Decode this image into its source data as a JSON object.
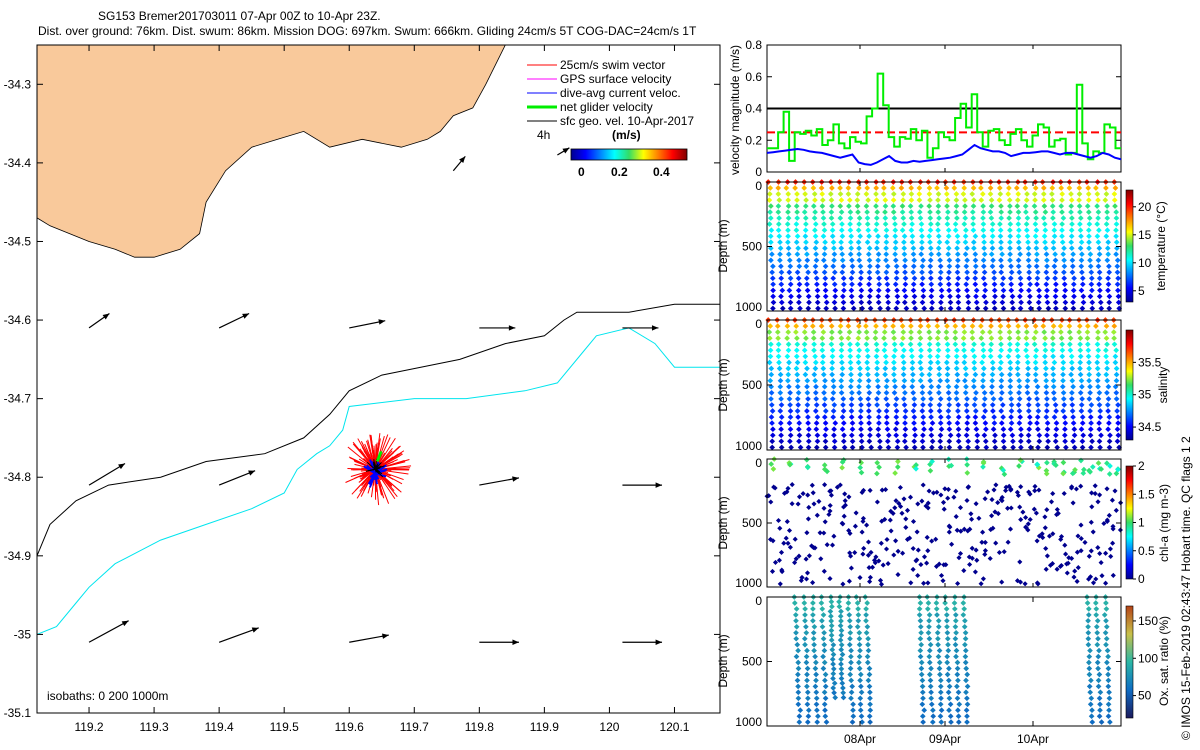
{
  "header": {
    "title_line1": "SG153 Bremer201703011 07-Apr 00Z to 10-Apr 23Z.",
    "title_line2": "Dist. over ground: 76km. Dist. swum: 86km. Mission DOG: 697km. Swum: 666km. Gliding 24cm/s 5T COG-DAC=24cm/s 1T"
  },
  "side_note": "© IMOS 15-Feb-2019 02:43:47 Hobart time. QC flags 1  2",
  "colors": {
    "land": "#f9c99b",
    "red": "#ff0000",
    "magenta": "#ff00ff",
    "blue": "#0000ff",
    "green": "#00ee00",
    "cyan": "#00e5ee",
    "black": "#000000"
  },
  "chart_data": [
    {
      "type": "map",
      "xlabel": "",
      "ylabel": "",
      "xlim": [
        119.12,
        120.17
      ],
      "ylim": [
        -35.1,
        -34.25
      ],
      "xticks": [
        119.2,
        119.3,
        119.4,
        119.5,
        119.6,
        119.7,
        119.8,
        119.9,
        120,
        120.1
      ],
      "xtick_labels": [
        "119.2",
        "119.3",
        "119.4",
        "119.5",
        "119.6",
        "119.7",
        "119.8",
        "119.9",
        "120",
        "120.1"
      ],
      "yticks": [
        -34.3,
        -34.4,
        -34.5,
        -34.6,
        -34.7,
        -34.8,
        -34.9,
        -35,
        -35.1
      ],
      "ytick_labels": [
        "-34.3",
        "-34.4",
        "-34.5",
        "-34.6",
        "-34.7",
        "-34.8",
        "-34.9",
        "-35",
        "-35.1"
      ],
      "legend": {
        "entries": [
          "25cm/s swim vector",
          "GPS surface velocity",
          "dive-avg current veloc.",
          "net glider velocity",
          "sfc geo. vel. 10-Apr-2017"
        ],
        "time_label": "4h",
        "unit_label": "(m/s)",
        "colorbar_ticks": [
          "0",
          "0.2",
          "0.4"
        ]
      },
      "isobaths_label": "isobaths: 0   200  1000m",
      "coastline": [
        [
          119.12,
          -34.25
        ],
        [
          119.84,
          -34.25
        ],
        [
          119.81,
          -34.3
        ],
        [
          119.79,
          -34.33
        ],
        [
          119.76,
          -34.34
        ],
        [
          119.74,
          -34.36
        ],
        [
          119.72,
          -34.37
        ],
        [
          119.68,
          -34.38
        ],
        [
          119.62,
          -34.37
        ],
        [
          119.57,
          -34.38
        ],
        [
          119.53,
          -34.36
        ],
        [
          119.49,
          -34.37
        ],
        [
          119.45,
          -34.38
        ],
        [
          119.41,
          -34.41
        ],
        [
          119.38,
          -34.45
        ],
        [
          119.37,
          -34.49
        ],
        [
          119.34,
          -34.51
        ],
        [
          119.3,
          -34.52
        ],
        [
          119.27,
          -34.52
        ],
        [
          119.24,
          -34.51
        ],
        [
          119.2,
          -34.5
        ],
        [
          119.17,
          -34.49
        ],
        [
          119.14,
          -34.48
        ],
        [
          119.12,
          -34.47
        ]
      ],
      "isobath_200": [
        [
          119.12,
          -34.9
        ],
        [
          119.14,
          -34.86
        ],
        [
          119.18,
          -34.83
        ],
        [
          119.23,
          -34.81
        ],
        [
          119.31,
          -34.8
        ],
        [
          119.38,
          -34.78
        ],
        [
          119.47,
          -34.77
        ],
        [
          119.53,
          -34.75
        ],
        [
          119.57,
          -34.72
        ],
        [
          119.6,
          -34.69
        ],
        [
          119.65,
          -34.67
        ],
        [
          119.71,
          -34.66
        ],
        [
          119.77,
          -34.65
        ],
        [
          119.84,
          -34.63
        ],
        [
          119.9,
          -34.62
        ],
        [
          119.93,
          -34.6
        ],
        [
          119.95,
          -34.59
        ],
        [
          120.03,
          -34.59
        ],
        [
          120.1,
          -34.58
        ],
        [
          120.17,
          -34.58
        ]
      ],
      "isobath_1000": [
        [
          119.12,
          -35.0
        ],
        [
          119.15,
          -34.99
        ],
        [
          119.18,
          -34.96
        ],
        [
          119.2,
          -34.94
        ],
        [
          119.24,
          -34.91
        ],
        [
          119.31,
          -34.88
        ],
        [
          119.38,
          -34.86
        ],
        [
          119.45,
          -34.84
        ],
        [
          119.5,
          -34.82
        ],
        [
          119.52,
          -34.79
        ],
        [
          119.55,
          -34.77
        ],
        [
          119.57,
          -34.76
        ],
        [
          119.59,
          -34.74
        ],
        [
          119.6,
          -34.71
        ],
        [
          119.7,
          -34.7
        ],
        [
          119.78,
          -34.7
        ],
        [
          119.87,
          -34.69
        ],
        [
          119.92,
          -34.68
        ],
        [
          119.96,
          -34.64
        ],
        [
          119.98,
          -34.62
        ],
        [
          120.03,
          -34.61
        ],
        [
          120.07,
          -34.63
        ],
        [
          120.1,
          -34.66
        ],
        [
          120.17,
          -34.66
        ]
      ],
      "current_vectors": [
        [
          119.2,
          -34.61,
          0.17,
          0.02
        ],
        [
          119.4,
          -34.61,
          0.25,
          0.02
        ],
        [
          119.6,
          -34.61,
          0.3,
          0.01
        ],
        [
          119.8,
          -34.61,
          0.3,
          0.0
        ],
        [
          120.02,
          -34.61,
          0.3,
          0.0
        ],
        [
          119.2,
          -34.81,
          0.3,
          0.03
        ],
        [
          119.4,
          -34.81,
          0.3,
          0.02
        ],
        [
          119.8,
          -34.81,
          0.33,
          0.01
        ],
        [
          120.02,
          -34.81,
          0.33,
          0.0
        ],
        [
          119.2,
          -35.01,
          0.33,
          0.03
        ],
        [
          119.4,
          -35.01,
          0.33,
          0.02
        ],
        [
          119.6,
          -35.01,
          0.33,
          0.01
        ],
        [
          119.8,
          -35.01,
          0.33,
          0.0
        ],
        [
          120.02,
          -35.01,
          0.33,
          0.0
        ],
        [
          119.92,
          -34.39,
          0.1,
          0.01
        ],
        [
          119.76,
          -34.41,
          0.1,
          0.02
        ]
      ],
      "glider_center": [
        119.64,
        -34.79
      ]
    },
    {
      "type": "line",
      "ylabel": "velocity magnitude (m/s)",
      "ylim": [
        0,
        0.8
      ],
      "yticks": [
        "0",
        "0.2",
        "0.4",
        "0.6",
        "0.8"
      ],
      "reference_lines": [
        {
          "name": "black",
          "value": 0.4
        },
        {
          "name": "red dashed",
          "value": 0.25
        }
      ],
      "series": [
        {
          "name": "net glider velocity",
          "values": [
            0.15,
            0.15,
            0.25,
            0.38,
            0.07,
            0.25,
            0.24,
            0.26,
            0.23,
            0.27,
            0.17,
            0.2,
            0.3,
            0.18,
            0.15,
            0.22,
            0.19,
            0.18,
            0.35,
            0.4,
            0.62,
            0.42,
            0.22,
            0.16,
            0.22,
            0.21,
            0.27,
            0.2,
            0.26,
            0.09,
            0.15,
            0.25,
            0.22,
            0.2,
            0.34,
            0.43,
            0.28,
            0.49,
            0.25,
            0.16,
            0.26,
            0.27,
            0.2,
            0.17,
            0.24,
            0.27,
            0.2,
            0.16,
            0.23,
            0.3,
            0.28,
            0.16,
            0.2,
            0.21,
            0.11,
            0.12,
            0.55,
            0.18,
            0.08,
            0.13,
            0.12,
            0.3,
            0.28,
            0.15,
            0.15
          ]
        },
        {
          "name": "dive-avg current",
          "values": [
            0.12,
            0.125,
            0.13,
            0.135,
            0.14,
            0.145,
            0.14,
            0.13,
            0.125,
            0.12,
            0.11,
            0.1,
            0.09,
            0.1,
            0.11,
            0.06,
            0.05,
            0.045,
            0.06,
            0.08,
            0.1,
            0.07,
            0.06,
            0.06,
            0.07,
            0.065,
            0.07,
            0.075,
            0.08,
            0.085,
            0.09,
            0.1,
            0.11,
            0.14,
            0.17,
            0.15,
            0.14,
            0.13,
            0.13,
            0.12,
            0.1,
            0.11,
            0.12,
            0.12,
            0.125,
            0.13,
            0.13,
            0.12,
            0.11,
            0.12,
            0.12,
            0.11,
            0.1,
            0.09,
            0.1,
            0.12,
            0.11,
            0.09,
            0.08
          ]
        }
      ]
    },
    {
      "type": "scatter",
      "ylabel": "Depth (m)",
      "colorbar_label": "temperature (°C)",
      "ylim": [
        0,
        1000
      ],
      "yticks": [
        "0",
        "500",
        "1000"
      ],
      "colorbar_ticks": [
        "5",
        "10",
        "15",
        "20"
      ],
      "clim": [
        3,
        23
      ],
      "num_dives": 40,
      "max_depth": 1000
    },
    {
      "type": "scatter",
      "ylabel": "Depth (m)",
      "colorbar_label": "salinity",
      "ylim": [
        0,
        1000
      ],
      "yticks": [
        "0",
        "500",
        "1000"
      ],
      "colorbar_ticks": [
        "34.5",
        "35",
        "35.5"
      ],
      "clim": [
        34.3,
        36.0
      ],
      "num_dives": 40,
      "max_depth": 1000
    },
    {
      "type": "scatter",
      "ylabel": "Depth (m)",
      "colorbar_label": "chl-a (mg m-3)",
      "ylim": [
        0,
        1000
      ],
      "yticks": [
        "0",
        "500",
        "1000"
      ],
      "colorbar_ticks": [
        "0",
        "0.5",
        "1",
        "1.5",
        "2"
      ],
      "clim": [
        0,
        2
      ],
      "num_dives": 40,
      "max_depth": 1000
    },
    {
      "type": "scatter",
      "ylabel": "Depth (m)",
      "colorbar_label": "Ox. sat. ratio (%)",
      "ylim": [
        0,
        1000
      ],
      "yticks": [
        "0",
        "500",
        "1000"
      ],
      "colorbar_ticks": [
        "50",
        "100",
        "150"
      ],
      "clim": [
        20,
        170
      ],
      "xticks": [
        "08Apr",
        "09Apr",
        "10Apr"
      ],
      "dive_groups": [
        [
          3,
          11
        ],
        [
          17,
          22
        ],
        [
          36,
          38
        ]
      ]
    }
  ]
}
